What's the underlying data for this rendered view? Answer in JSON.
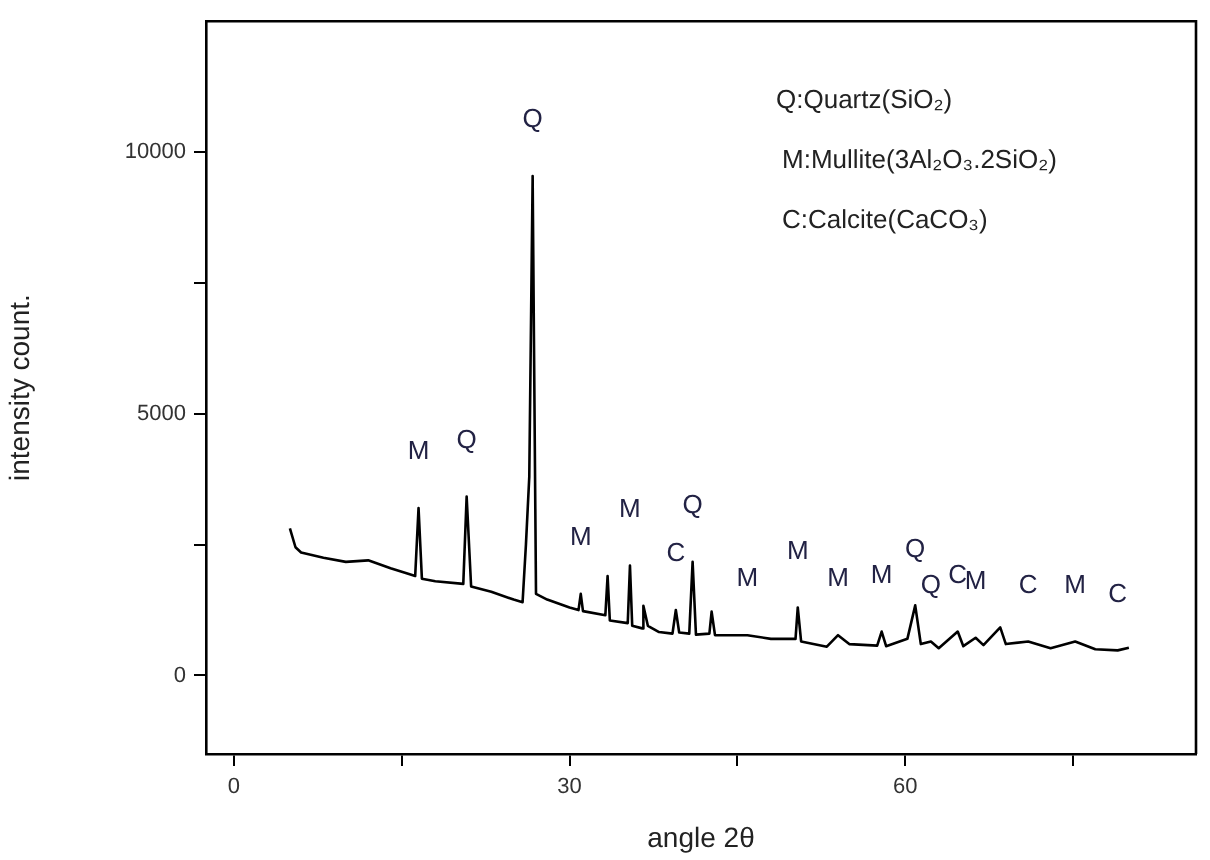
{
  "chart_data": {
    "type": "line",
    "xlabel": "angle 2θ",
    "ylabel": "intensity count.",
    "xlim": [
      -2.5,
      86
    ],
    "ylim": [
      -1500,
      12500
    ],
    "xticks": [
      0,
      {
        "value": 15,
        "label": null
      },
      30,
      {
        "value": 45,
        "label": null
      },
      60,
      {
        "value": 75,
        "label": null
      }
    ],
    "yticks": [
      0,
      {
        "value": 2500,
        "label": null
      },
      5000,
      {
        "value": 7500,
        "label": null
      },
      10000
    ],
    "grid": false,
    "legend": false,
    "marker": "none",
    "line_style": "solid",
    "series": [
      {
        "color": "#000000",
        "x": [
          5,
          5.5,
          6,
          8,
          10,
          12,
          14,
          15.5,
          16.2,
          16.5,
          16.8,
          18,
          20.5,
          20.8,
          21.2,
          23,
          25,
          25.8,
          26.1,
          26.4,
          26.7,
          27,
          28,
          30,
          30.8,
          31.0,
          31.2,
          33.2,
          33.4,
          33.6,
          35.2,
          35.4,
          35.6,
          36.5,
          36.6,
          37,
          38,
          39.2,
          39.5,
          39.8,
          40.7,
          41.0,
          41.3,
          42.5,
          42.7,
          43,
          45.9,
          48,
          50.2,
          50.4,
          50.7,
          53,
          54,
          55,
          57.5,
          57.9,
          58.3,
          60.2,
          60.9,
          61.4,
          62.3,
          63,
          64.7,
          65.2,
          66.3,
          67,
          68.5,
          69,
          71,
          73,
          75.2,
          77,
          79,
          80
        ],
        "values": [
          2810,
          2450,
          2350,
          2250,
          2170,
          2200,
          2050,
          1950,
          1900,
          3200,
          1850,
          1800,
          1750,
          3420,
          1700,
          1600,
          1450,
          1400,
          2500,
          3800,
          9540,
          1560,
          1450,
          1300,
          1250,
          1560,
          1230,
          1150,
          1900,
          1050,
          1000,
          2100,
          950,
          900,
          1330,
          950,
          830,
          800,
          1250,
          820,
          800,
          2170,
          780,
          800,
          1220,
          770,
          770,
          700,
          700,
          1300,
          650,
          550,
          770,
          600,
          570,
          840,
          560,
          700,
          1340,
          600,
          650,
          520,
          840,
          560,
          720,
          580,
          920,
          600,
          650,
          520,
          650,
          500,
          480,
          530
        ]
      }
    ],
    "annotations": [
      "Q:Quartz(SiO₂)",
      "M:Mullite(3Al₂O₃.2SiO₂)",
      "C:Calcite(CaCO₃)",
      {
        "text": "M",
        "x": 16.5,
        "y": 3200
      },
      {
        "text": "Q",
        "x": 20.8,
        "y": 3420
      },
      {
        "text": "Q",
        "x": 26.7,
        "y": 9540
      },
      {
        "text": "M",
        "x": 31.0,
        "y": 1560
      },
      {
        "text": "M",
        "x": 35.4,
        "y": 2100
      },
      {
        "text": "C",
        "x": 39.5,
        "y": 1250
      },
      {
        "text": "Q",
        "x": 41.0,
        "y": 2170
      },
      {
        "text": "M",
        "x": 45.9,
        "y": 770
      },
      {
        "text": "M",
        "x": 50.4,
        "y": 1300
      },
      {
        "text": "M",
        "x": 54,
        "y": 770
      },
      {
        "text": "M",
        "x": 57.9,
        "y": 840
      },
      {
        "text": "Q",
        "x": 60.9,
        "y": 1340
      },
      {
        "text": "Q",
        "x": 62.3,
        "y": 650
      },
      {
        "text": "C",
        "x": 64.7,
        "y": 840
      },
      {
        "text": "M",
        "x": 66.3,
        "y": 720
      },
      {
        "text": "C",
        "x": 71,
        "y": 650
      },
      {
        "text": "M",
        "x": 75.2,
        "y": 650
      },
      {
        "text": "C",
        "x": 79,
        "y": 480
      }
    ]
  }
}
